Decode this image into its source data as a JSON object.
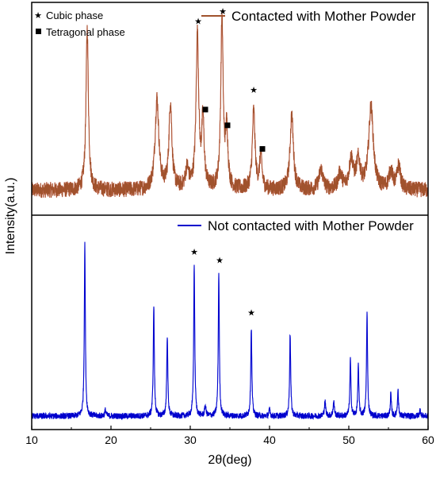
{
  "chart_data": {
    "type": "line",
    "xlabel": "2θ(deg)",
    "ylabel": "Intensity(a.u.)",
    "xlim": [
      10,
      60
    ],
    "xticks": [
      10,
      20,
      30,
      40,
      50,
      60
    ],
    "panels": [
      {
        "id": "top",
        "legend": [
          {
            "marker": "★",
            "label": "Cubic phase"
          },
          {
            "marker": "■",
            "label": "Tetragonal phase"
          }
        ],
        "series": [
          {
            "name": "Contacted with Mother Powder",
            "color": "#a0522d",
            "noise_color": "#ff3030",
            "baseline": 0.07,
            "noise": 0.04,
            "peaks": [
              {
                "x": 17.0,
                "h": 0.82,
                "w": 0.18
              },
              {
                "x": 25.8,
                "h": 0.46,
                "w": 0.28
              },
              {
                "x": 27.5,
                "h": 0.44,
                "w": 0.22
              },
              {
                "x": 29.6,
                "h": 0.1,
                "w": 0.25
              },
              {
                "x": 30.9,
                "h": 0.78,
                "w": 0.2
              },
              {
                "x": 31.6,
                "h": 0.34,
                "w": 0.18
              },
              {
                "x": 34.0,
                "h": 0.86,
                "w": 0.18
              },
              {
                "x": 34.6,
                "h": 0.29,
                "w": 0.18
              },
              {
                "x": 38.0,
                "h": 0.4,
                "w": 0.2
              },
              {
                "x": 38.9,
                "h": 0.17,
                "w": 0.18
              },
              {
                "x": 42.8,
                "h": 0.38,
                "w": 0.25
              },
              {
                "x": 46.5,
                "h": 0.1,
                "w": 0.3
              },
              {
                "x": 48.9,
                "h": 0.08,
                "w": 0.3
              },
              {
                "x": 50.3,
                "h": 0.15,
                "w": 0.3
              },
              {
                "x": 51.2,
                "h": 0.14,
                "w": 0.3
              },
              {
                "x": 52.8,
                "h": 0.42,
                "w": 0.35
              },
              {
                "x": 55.3,
                "h": 0.09,
                "w": 0.3
              },
              {
                "x": 56.3,
                "h": 0.12,
                "w": 0.25
              }
            ]
          }
        ],
        "markers": [
          {
            "symbol": "★",
            "x": 31.0,
            "y": 0.93
          },
          {
            "symbol": "★",
            "x": 34.1,
            "y": 0.98
          },
          {
            "symbol": "★",
            "x": 38.0,
            "y": 0.58
          },
          {
            "symbol": "■",
            "x": 31.9,
            "y": 0.48
          },
          {
            "symbol": "■",
            "x": 34.7,
            "y": 0.4
          },
          {
            "symbol": "■",
            "x": 39.1,
            "y": 0.28
          }
        ]
      },
      {
        "id": "bottom",
        "legend": [],
        "series": [
          {
            "name": "Not contacted with Mother Powder",
            "color": "#0000cc",
            "noise_color": "#2040ff",
            "baseline": 0.035,
            "noise": 0.015,
            "peaks": [
              {
                "x": 16.7,
                "h": 0.85,
                "w": 0.08
              },
              {
                "x": 19.3,
                "h": 0.03,
                "w": 0.1
              },
              {
                "x": 25.4,
                "h": 0.55,
                "w": 0.08
              },
              {
                "x": 27.1,
                "h": 0.4,
                "w": 0.08
              },
              {
                "x": 30.5,
                "h": 0.75,
                "w": 0.08
              },
              {
                "x": 31.9,
                "h": 0.05,
                "w": 0.1
              },
              {
                "x": 33.6,
                "h": 0.71,
                "w": 0.08
              },
              {
                "x": 37.7,
                "h": 0.44,
                "w": 0.08
              },
              {
                "x": 40.0,
                "h": 0.03,
                "w": 0.1
              },
              {
                "x": 42.6,
                "h": 0.41,
                "w": 0.08
              },
              {
                "x": 47.0,
                "h": 0.07,
                "w": 0.1
              },
              {
                "x": 48.1,
                "h": 0.07,
                "w": 0.1
              },
              {
                "x": 50.2,
                "h": 0.28,
                "w": 0.08
              },
              {
                "x": 51.2,
                "h": 0.25,
                "w": 0.08
              },
              {
                "x": 52.3,
                "h": 0.51,
                "w": 0.08
              },
              {
                "x": 55.3,
                "h": 0.11,
                "w": 0.08
              },
              {
                "x": 56.2,
                "h": 0.13,
                "w": 0.08
              },
              {
                "x": 59.0,
                "h": 0.03,
                "w": 0.1
              }
            ]
          }
        ],
        "markers": [
          {
            "symbol": "★",
            "x": 30.5,
            "y": 0.85
          },
          {
            "symbol": "★",
            "x": 33.7,
            "y": 0.81
          },
          {
            "symbol": "★",
            "x": 37.7,
            "y": 0.55
          }
        ]
      }
    ]
  }
}
